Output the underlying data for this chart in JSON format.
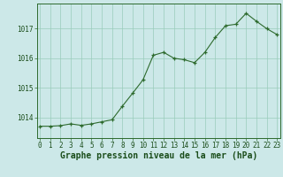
{
  "x": [
    0,
    1,
    2,
    3,
    4,
    5,
    6,
    7,
    8,
    9,
    10,
    11,
    12,
    13,
    14,
    15,
    16,
    17,
    18,
    19,
    20,
    21,
    22,
    23
  ],
  "y": [
    1013.7,
    1013.7,
    1013.72,
    1013.78,
    1013.73,
    1013.78,
    1013.85,
    1013.92,
    1014.38,
    1014.82,
    1015.27,
    1016.1,
    1016.2,
    1016.0,
    1015.95,
    1015.85,
    1016.2,
    1016.7,
    1017.1,
    1017.15,
    1017.52,
    1017.25,
    1017.0,
    1016.8
  ],
  "line_color": "#2d6a2d",
  "marker_color": "#2d6a2d",
  "bg_color": "#cce8e8",
  "grid_color": "#99ccbb",
  "xlabel": "Graphe pression niveau de la mer (hPa)",
  "yticks": [
    1014,
    1015,
    1016,
    1017
  ],
  "xticks": [
    0,
    1,
    2,
    3,
    4,
    5,
    6,
    7,
    8,
    9,
    10,
    11,
    12,
    13,
    14,
    15,
    16,
    17,
    18,
    19,
    20,
    21,
    22,
    23
  ],
  "ylim": [
    1013.3,
    1017.85
  ],
  "xlim": [
    -0.3,
    23.3
  ],
  "tick_fontsize": 5.5,
  "label_fontsize": 7,
  "label_color": "#1a4d1a",
  "spine_color": "#2d6a2d"
}
